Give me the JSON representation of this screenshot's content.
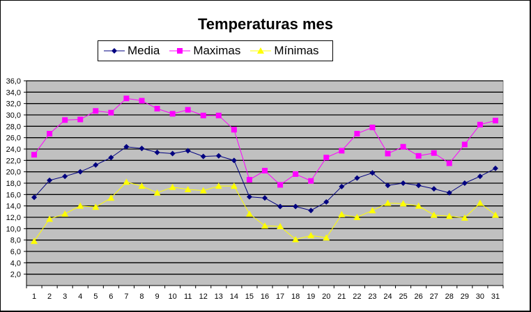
{
  "chart_data": {
    "type": "line",
    "title": "Temperaturas mes",
    "xlabel": "",
    "ylabel": "",
    "categories": [
      "1",
      "2",
      "3",
      "4",
      "5",
      "6",
      "7",
      "8",
      "9",
      "10",
      "11",
      "12",
      "13",
      "14",
      "15",
      "16",
      "17",
      "18",
      "19",
      "20",
      "21",
      "22",
      "23",
      "24",
      "25",
      "26",
      "27",
      "28",
      "29",
      "30",
      "31"
    ],
    "ylim": [
      0,
      36
    ],
    "ytick_step": 2,
    "ytick_labels": [
      "2,0",
      "4,0",
      "6,0",
      "8,0",
      "10,0",
      "12,0",
      "14,0",
      "16,0",
      "18,0",
      "20,0",
      "22,0",
      "24,0",
      "26,0",
      "28,0",
      "30,0",
      "32,0",
      "34,0",
      "36,0"
    ],
    "grid": true,
    "legend_position": "top",
    "plot_background": "#C0C0C0",
    "series": [
      {
        "name": "Media",
        "color": "#000080",
        "marker": "diamond",
        "values": [
          15.5,
          18.5,
          19.2,
          20.0,
          21.2,
          22.5,
          24.4,
          24.1,
          23.4,
          23.2,
          23.7,
          22.7,
          22.8,
          22.0,
          15.6,
          15.4,
          13.9,
          13.9,
          13.2,
          14.7,
          17.4,
          18.9,
          19.8,
          17.6,
          18.0,
          17.6,
          17.0,
          16.3,
          18.0,
          19.2,
          20.6
        ]
      },
      {
        "name": "Maximas",
        "color": "#FF00FF",
        "marker": "square",
        "values": [
          23.0,
          26.7,
          29.1,
          29.2,
          30.7,
          30.4,
          32.9,
          32.5,
          31.1,
          30.2,
          30.9,
          29.9,
          29.9,
          27.4,
          18.6,
          20.2,
          17.7,
          19.6,
          18.4,
          22.5,
          23.7,
          26.7,
          27.8,
          23.2,
          24.4,
          22.8,
          23.3,
          21.5,
          24.8,
          28.3,
          29.0
        ]
      },
      {
        "name": "Mínimas",
        "color": "#FFFF00",
        "marker": "triangle",
        "values": [
          7.8,
          11.7,
          12.6,
          14.0,
          13.8,
          15.4,
          18.2,
          17.5,
          16.3,
          17.3,
          16.9,
          16.7,
          17.5,
          17.5,
          12.6,
          10.5,
          10.4,
          8.1,
          8.8,
          8.4,
          12.5,
          12.0,
          13.2,
          14.5,
          14.4,
          14.0,
          12.4,
          12.2,
          11.9,
          14.5,
          12.4
        ]
      }
    ]
  }
}
